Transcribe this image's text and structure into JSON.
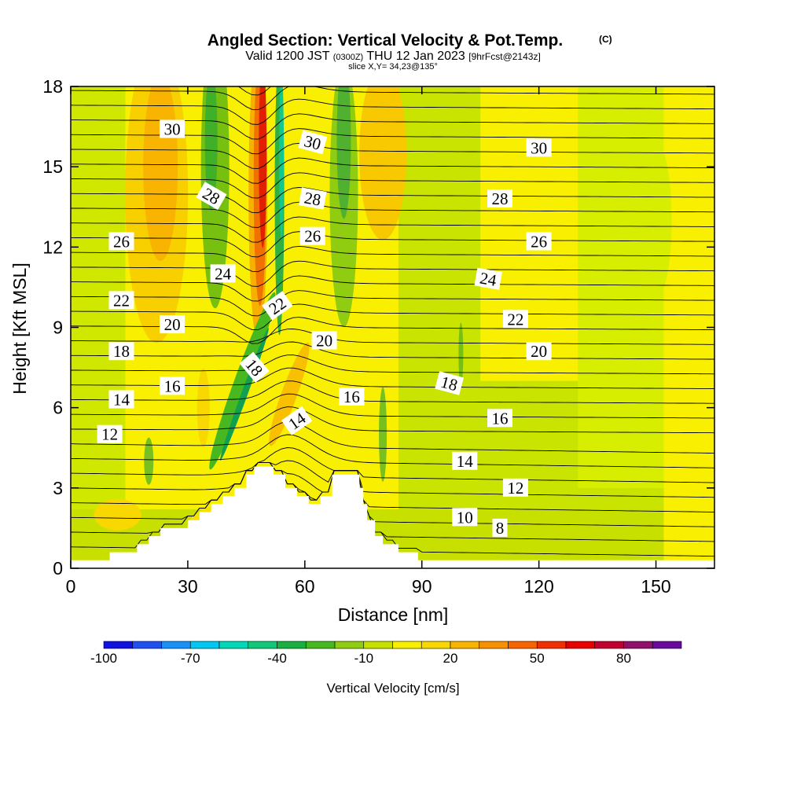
{
  "title": {
    "main": "Angled Section: Vertical Velocity & Pot.Temp.",
    "main_tag": "(C)",
    "valid_prefix": "Valid 1200 JST",
    "valid_utc": "(0300Z)",
    "valid_date": "THU 12 Jan 2023",
    "forecast": "[9hrFcst@2143z]",
    "slice": "slice X,Y= 34,23@135°"
  },
  "chart_data": {
    "type": "contour",
    "xlabel": "Distance [nm]",
    "ylabel": "Height [Kft MSL]",
    "xlim": [
      0,
      165
    ],
    "ylim": [
      0,
      18
    ],
    "x_ticks": [
      0,
      30,
      60,
      90,
      120,
      150
    ],
    "y_ticks": [
      0,
      3,
      6,
      9,
      12,
      15,
      18
    ],
    "terrain_profile": [
      [
        0,
        0.3
      ],
      [
        10,
        0.3
      ],
      [
        10,
        0.6
      ],
      [
        17,
        0.6
      ],
      [
        17,
        0.9
      ],
      [
        20,
        0.9
      ],
      [
        20,
        1.2
      ],
      [
        23,
        1.2
      ],
      [
        23,
        1.5
      ],
      [
        30,
        1.5
      ],
      [
        30,
        1.8
      ],
      [
        33,
        1.8
      ],
      [
        33,
        2.1
      ],
      [
        36,
        2.1
      ],
      [
        36,
        2.4
      ],
      [
        39,
        2.4
      ],
      [
        39,
        2.7
      ],
      [
        42,
        2.7
      ],
      [
        42,
        3.0
      ],
      [
        45,
        3.0
      ],
      [
        45,
        3.5
      ],
      [
        47,
        3.5
      ],
      [
        47,
        3.8
      ],
      [
        52,
        3.8
      ],
      [
        52,
        3.5
      ],
      [
        55,
        3.5
      ],
      [
        55,
        3.0
      ],
      [
        58,
        3.0
      ],
      [
        58,
        2.7
      ],
      [
        61,
        2.7
      ],
      [
        61,
        2.4
      ],
      [
        64,
        2.4
      ],
      [
        64,
        2.7
      ],
      [
        67,
        2.7
      ],
      [
        67,
        3.5
      ],
      [
        74,
        3.5
      ],
      [
        74,
        3.0
      ],
      [
        75,
        3.0
      ],
      [
        75,
        2.4
      ],
      [
        76,
        2.4
      ],
      [
        76,
        1.8
      ],
      [
        78,
        1.8
      ],
      [
        78,
        1.2
      ],
      [
        80,
        1.2
      ],
      [
        80,
        0.9
      ],
      [
        84,
        0.9
      ],
      [
        84,
        0.6
      ],
      [
        89,
        0.6
      ],
      [
        89,
        0.3
      ],
      [
        165,
        0.3
      ]
    ],
    "vertical_velocity": {
      "units": "cm/s",
      "colorbar_label": "Vertical Velocity [cm/s]",
      "colorbar_ticks": [
        -100,
        -70,
        -40,
        -10,
        20,
        50,
        80
      ],
      "colorbar_colors": [
        "#1010e0",
        "#2050f0",
        "#1890f8",
        "#00c8f0",
        "#00d8b8",
        "#10c878",
        "#18b040",
        "#48b820",
        "#90cc10",
        "#c8e000",
        "#f8f000",
        "#f8d800",
        "#f8b400",
        "#f89000",
        "#f86400",
        "#f03000",
        "#e80000",
        "#c00030",
        "#90106a",
        "#6a0a9a"
      ],
      "upper_band_1": [
        "#e1f000",
        "#ffb800"
      ],
      "upper_band_2": [
        "#c0e000",
        "#79bd00"
      ],
      "upper_band_3": [
        "#ffd000",
        "#ff8000",
        "#ff0000"
      ],
      "upper_band_4": [
        "#00c880",
        "#00b060"
      ],
      "upper_band_5": [
        "#90cc10",
        "#ffc000"
      ],
      "upper_band_6": [
        "#d5ef00"
      ],
      "lower_band_1": [
        "#a8d800",
        "#78b800",
        "#009c50",
        "#008040"
      ],
      "lower_band_2": [
        "#ffd000",
        "#ff9000"
      ]
    },
    "potential_temperature": {
      "units": "C",
      "labels": [
        {
          "text": "30",
          "x": 26,
          "y": 16.4,
          "angle": 0
        },
        {
          "text": "30",
          "x": 62,
          "y": 15.9,
          "angle": 15
        },
        {
          "text": "30",
          "x": 120,
          "y": 15.7,
          "angle": 0
        },
        {
          "text": "28",
          "x": 36,
          "y": 13.9,
          "angle": 30
        },
        {
          "text": "28",
          "x": 62,
          "y": 13.8,
          "angle": 10
        },
        {
          "text": "28",
          "x": 110,
          "y": 13.8,
          "angle": 0
        },
        {
          "text": "26",
          "x": 13,
          "y": 12.2,
          "angle": 0
        },
        {
          "text": "26",
          "x": 62,
          "y": 12.4,
          "angle": 0
        },
        {
          "text": "26",
          "x": 120,
          "y": 12.2,
          "angle": 0
        },
        {
          "text": "24",
          "x": 39,
          "y": 11.0,
          "angle": 0
        },
        {
          "text": "24",
          "x": 107,
          "y": 10.8,
          "angle": 10
        },
        {
          "text": "22",
          "x": 13,
          "y": 10.0,
          "angle": 0
        },
        {
          "text": "22",
          "x": 53,
          "y": 9.8,
          "angle": -35
        },
        {
          "text": "22",
          "x": 114,
          "y": 9.3,
          "angle": 0
        },
        {
          "text": "20",
          "x": 26,
          "y": 9.1,
          "angle": 0
        },
        {
          "text": "20",
          "x": 65,
          "y": 8.5,
          "angle": 0
        },
        {
          "text": "20",
          "x": 120,
          "y": 8.1,
          "angle": 0
        },
        {
          "text": "18",
          "x": 13,
          "y": 8.1,
          "angle": 0
        },
        {
          "text": "18",
          "x": 47,
          "y": 7.5,
          "angle": 50
        },
        {
          "text": "18",
          "x": 97,
          "y": 6.9,
          "angle": 15
        },
        {
          "text": "16",
          "x": 26,
          "y": 6.8,
          "angle": 0
        },
        {
          "text": "16",
          "x": 72,
          "y": 6.4,
          "angle": 0
        },
        {
          "text": "16",
          "x": 110,
          "y": 5.6,
          "angle": 0
        },
        {
          "text": "14",
          "x": 13,
          "y": 6.3,
          "angle": 0
        },
        {
          "text": "14",
          "x": 58,
          "y": 5.5,
          "angle": -35
        },
        {
          "text": "14",
          "x": 101,
          "y": 4.0,
          "angle": 0
        },
        {
          "text": "12",
          "x": 10,
          "y": 5.0,
          "angle": 0
        },
        {
          "text": "12",
          "x": 114,
          "y": 3.0,
          "angle": 0
        },
        {
          "text": "10",
          "x": 101,
          "y": 1.9,
          "angle": 0
        },
        {
          "text": "8",
          "x": 110,
          "y": 1.5,
          "angle": 0
        }
      ]
    },
    "legend": "bottom"
  }
}
